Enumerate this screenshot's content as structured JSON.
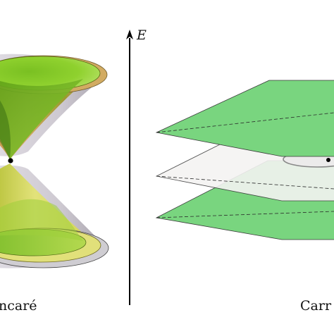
{
  "axis": {
    "label": "E"
  },
  "panels": {
    "left": {
      "caption": "ncaré",
      "colors": {
        "cone_green": "#9fd83a",
        "cone_yellow": "#d8e25a",
        "cone_orange": "#d9a46b",
        "hyperboloid": "#c9c4cf",
        "rim": "#7e8a2c"
      }
    },
    "right": {
      "caption": "Carr",
      "colors": {
        "plane_green": "#79d57f",
        "plane_middle": "#f4f3f2",
        "plane_edge": "#333333"
      }
    }
  }
}
